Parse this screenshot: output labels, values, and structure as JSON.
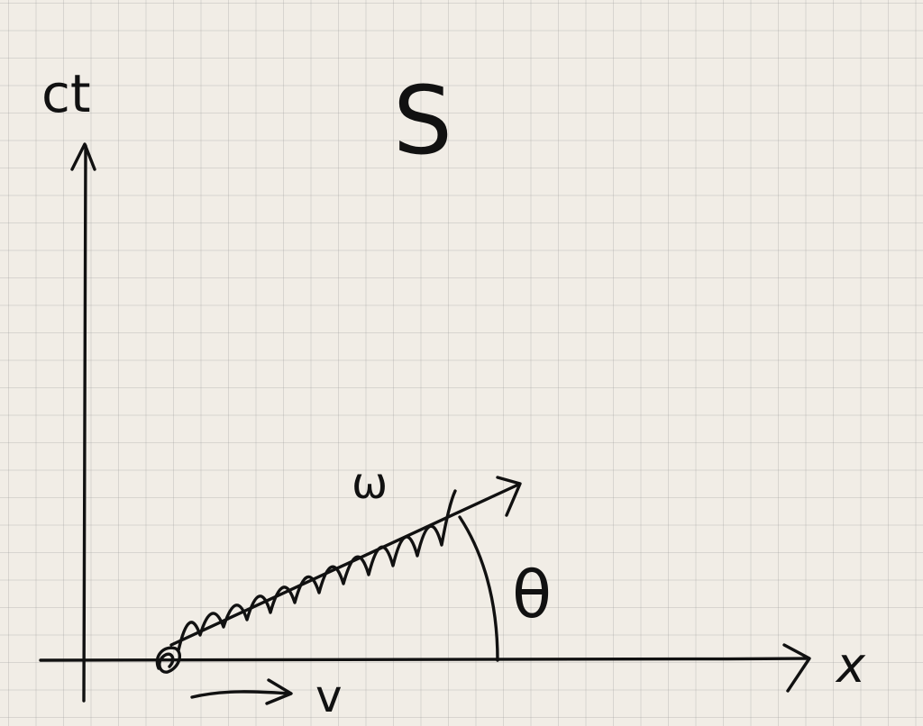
{
  "labels": {
    "y_axis": "ct",
    "x_axis": "x",
    "frame": "S",
    "wave": "ω",
    "angle": "θ",
    "velocity": "v"
  }
}
